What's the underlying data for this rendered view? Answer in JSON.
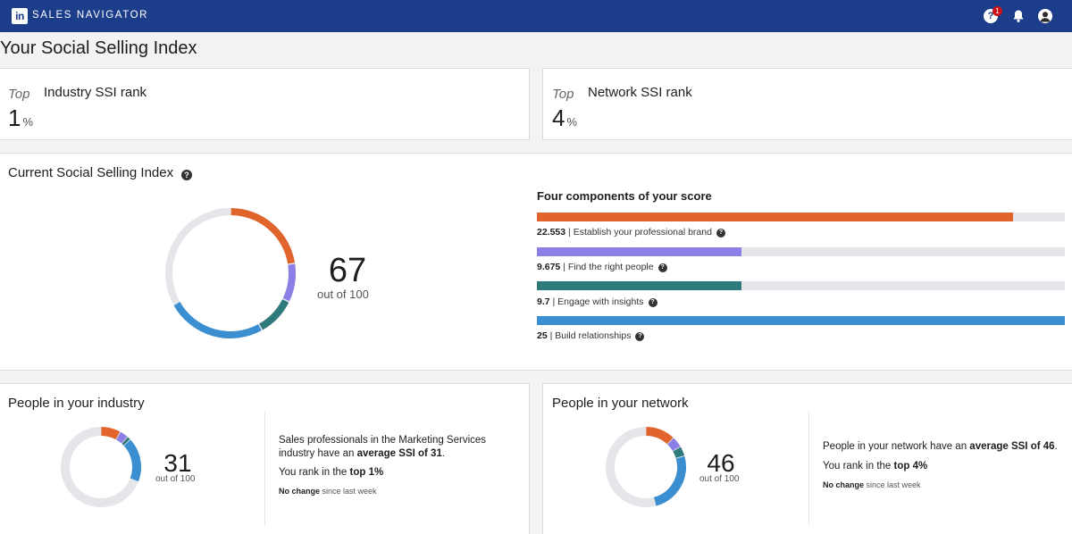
{
  "header": {
    "logo": "in",
    "brand": "SALES NAVIGATOR",
    "notification_count": "1",
    "colors": {
      "bar": "#1b3d8a",
      "badge": "#cc1016"
    },
    "icons": [
      "help-icon",
      "bell-icon",
      "avatar"
    ]
  },
  "page_title": "Your Social Selling Index",
  "industry_rank": {
    "top": "Top",
    "label": "Industry SSI rank",
    "value": "1",
    "unit": "%"
  },
  "network_rank": {
    "top": "Top",
    "label": "Network SSI rank",
    "value": "4",
    "unit": "%"
  },
  "current": {
    "title": "Current Social Selling Index",
    "score": "67",
    "out_of": "out of 100",
    "components_title": "Four components of your score",
    "components": [
      {
        "value": "22.553",
        "label": "| Establish your professional brand",
        "max": 25,
        "score": 22.553,
        "color": "#e0642b"
      },
      {
        "value": "9.675",
        "label": "| Find the right people",
        "max": 25,
        "score": 9.675,
        "color": "#8c7fe6"
      },
      {
        "value": "9.7",
        "label": "| Engage with insights",
        "max": 25,
        "score": 9.7,
        "color": "#2f7a7c"
      },
      {
        "value": "25",
        "label": "| Build relationships",
        "max": 25,
        "score": 25,
        "color": "#3b8fd0"
      }
    ]
  },
  "industry": {
    "title": "People in your industry",
    "score": "31",
    "out_of": "out of 100",
    "segments": [
      8,
      3.5,
      1.5,
      18
    ],
    "desc_pre": "Sales professionals in the Marketing Services industry have an ",
    "desc_bold": "average SSI of 31",
    "desc_post": ".",
    "rank_pre": "You rank in the ",
    "rank_bold": "top 1%",
    "change_bold": "No change",
    "change_post": " since last week"
  },
  "network": {
    "title": "People in your network",
    "score": "46",
    "out_of": "out of 100",
    "segments": [
      12,
      4.5,
      4,
      25.5
    ],
    "desc_pre": "People in your network have an ",
    "desc_bold": "average SSI of 46",
    "desc_post": ".",
    "rank_pre": "You rank in the ",
    "rank_bold": "top 4%",
    "change_bold": "No change",
    "change_post": " since last week"
  }
}
